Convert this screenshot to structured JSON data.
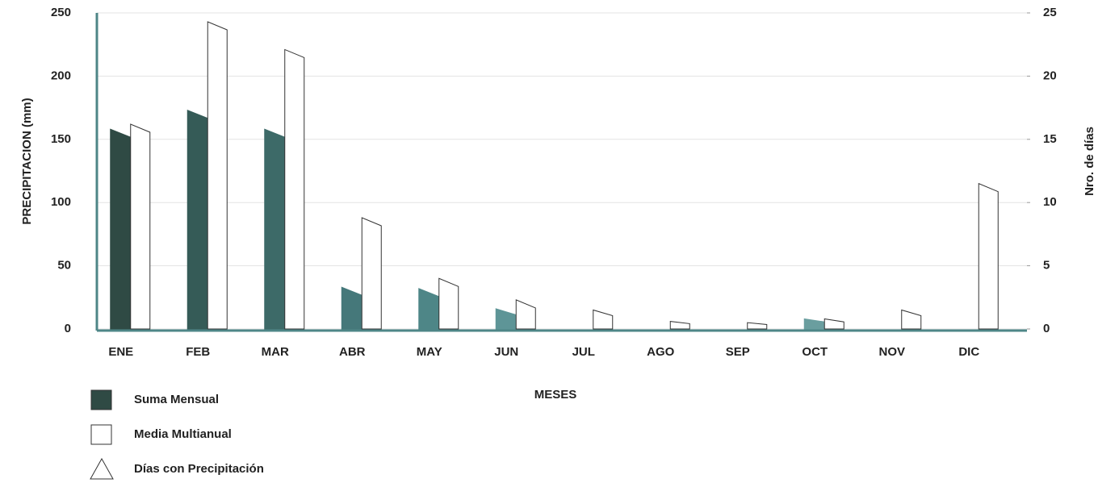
{
  "chart_data": {
    "type": "bar",
    "x_label": "MESES",
    "y_label": "PRECIPITACION (mm)",
    "y2_label": "Nro. de días",
    "categories": [
      "ENE",
      "FEB",
      "MAR",
      "ABR",
      "MAY",
      "JUN",
      "JUL",
      "AGO",
      "SEP",
      "OCT",
      "NOV",
      "DIC"
    ],
    "series": [
      {
        "name": "Suma Mensual",
        "color": "#2f4a44",
        "colors": [
          "#2f4a44",
          "#355b57",
          "#3d6a68",
          "#45787a",
          "#4e8687",
          "#5e9597",
          "#5e9597",
          "#5e9597",
          "#5e9597",
          "#6a9e9f",
          "#6a9e9f",
          "#6a9e9f"
        ],
        "values": [
          158,
          173,
          158,
          33,
          32,
          16,
          null,
          null,
          null,
          8,
          null,
          null
        ]
      },
      {
        "name": "Media Multianual",
        "color": "#ffffff",
        "values": [
          162,
          243,
          221,
          88,
          40,
          23,
          15,
          6,
          5,
          8,
          15,
          115
        ]
      },
      {
        "name": "Días con Precipitación",
        "color": "#ffffff",
        "marker": "triangle",
        "axis": "y2",
        "values": [
          null,
          null,
          null,
          null,
          null,
          null,
          null,
          null,
          null,
          null,
          null,
          null
        ]
      }
    ],
    "ylim": [
      0,
      250
    ],
    "yticks": [
      0,
      50,
      100,
      150,
      200,
      250
    ],
    "y2lim": [
      0,
      25
    ],
    "y2ticks": [
      0,
      5,
      10,
      15,
      20,
      25
    ],
    "grid": true
  }
}
